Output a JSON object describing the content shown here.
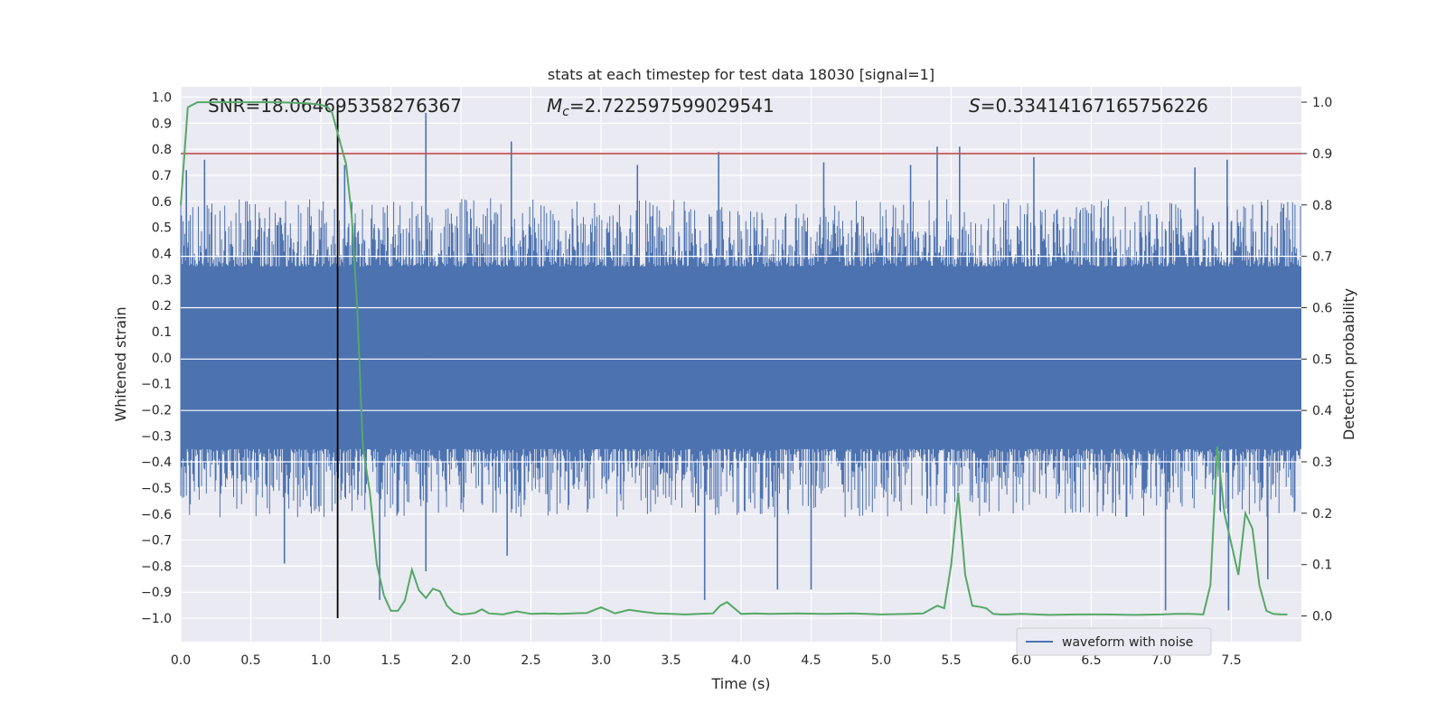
{
  "chart_data": {
    "type": "line",
    "title": "stats at each timestep for test data 18030 [signal=1]",
    "xlabel": "Time (s)",
    "ylabel": "Whitened strain",
    "ylabel_right": "Detection probability",
    "xlim": [
      0.0,
      8.0
    ],
    "ylim": [
      -1.09,
      1.04
    ],
    "ylim_right": [
      -0.05,
      1.03
    ],
    "x_ticks": [
      "0.0",
      "0.5",
      "1.0",
      "1.5",
      "2.0",
      "2.5",
      "3.0",
      "3.5",
      "4.0",
      "4.5",
      "5.0",
      "5.5",
      "6.0",
      "6.5",
      "7.0",
      "7.5"
    ],
    "x_tick_values": [
      0.0,
      0.5,
      1.0,
      1.5,
      2.0,
      2.5,
      3.0,
      3.5,
      4.0,
      4.5,
      5.0,
      5.5,
      6.0,
      6.5,
      7.0,
      7.5
    ],
    "y_ticks": [
      "1.0",
      "0.9",
      "0.8",
      "0.7",
      "0.6",
      "0.5",
      "0.4",
      "0.3",
      "0.2",
      "0.1",
      "0.0",
      "−0.1",
      "−0.2",
      "−0.3",
      "−0.4",
      "−0.5",
      "−0.6",
      "−0.7",
      "−0.8",
      "−0.9",
      "−1.0"
    ],
    "y_tick_values": [
      1.0,
      0.9,
      0.8,
      0.7,
      0.6,
      0.5,
      0.4,
      0.3,
      0.2,
      0.1,
      0.0,
      -0.1,
      -0.2,
      -0.3,
      -0.4,
      -0.5,
      -0.6,
      -0.7,
      -0.8,
      -0.9,
      -1.0
    ],
    "y_right_ticks": [
      "1.0",
      "0.9",
      "0.8",
      "0.7",
      "0.6",
      "0.5",
      "0.4",
      "0.3",
      "0.2",
      "0.1",
      "0.0"
    ],
    "y_right_tick_values": [
      1.0,
      0.9,
      0.8,
      0.7,
      0.6,
      0.5,
      0.4,
      0.3,
      0.2,
      0.1,
      0.0
    ],
    "annotations": {
      "snr": "SNR=18.064695358276367",
      "mc_symbol": "M",
      "mc_sub": "c",
      "mc_value": "=2.722597599029541",
      "s_symbol": "S",
      "s_value": "=0.33414167165756226"
    },
    "legend": {
      "label": "waveform with noise",
      "position": "lower-right"
    },
    "threshold_right": 0.9,
    "marker_time": 1.12,
    "series": [
      {
        "name": "waveform with noise",
        "axis": "left",
        "color": "#4c72b0",
        "noise_band": {
          "x_start": 0.0,
          "x_end": 8.0,
          "min": -0.6,
          "max": 0.6,
          "typical_abs": 0.35
        },
        "peaks": [
          {
            "x": 0.04,
            "y": 0.72
          },
          {
            "x": 0.17,
            "y": 0.76
          },
          {
            "x": 1.17,
            "y": 0.74
          },
          {
            "x": 1.75,
            "y": 0.94
          },
          {
            "x": 2.36,
            "y": 0.83
          },
          {
            "x": 3.26,
            "y": 0.74
          },
          {
            "x": 3.84,
            "y": 0.79
          },
          {
            "x": 4.59,
            "y": 0.75
          },
          {
            "x": 5.21,
            "y": 0.74
          },
          {
            "x": 5.4,
            "y": 0.81
          },
          {
            "x": 5.56,
            "y": 0.81
          },
          {
            "x": 6.09,
            "y": 0.77
          },
          {
            "x": 7.24,
            "y": 0.73
          },
          {
            "x": 7.47,
            "y": 0.76
          },
          {
            "x": 0.74,
            "y": -0.79
          },
          {
            "x": 1.42,
            "y": -0.93
          },
          {
            "x": 1.75,
            "y": -0.82
          },
          {
            "x": 2.33,
            "y": -0.76
          },
          {
            "x": 3.74,
            "y": -0.93
          },
          {
            "x": 4.26,
            "y": -0.89
          },
          {
            "x": 4.5,
            "y": -0.89
          },
          {
            "x": 7.03,
            "y": -0.97
          },
          {
            "x": 7.48,
            "y": -0.97
          },
          {
            "x": 7.76,
            "y": -0.85
          }
        ]
      },
      {
        "name": "detection probability",
        "axis": "right",
        "color": "#55a868",
        "x": [
          0.0,
          0.05,
          0.12,
          0.2,
          0.3,
          0.5,
          0.7,
          0.9,
          1.0,
          1.05,
          1.08,
          1.12,
          1.18,
          1.22,
          1.26,
          1.3,
          1.35,
          1.4,
          1.45,
          1.5,
          1.55,
          1.6,
          1.65,
          1.7,
          1.75,
          1.8,
          1.85,
          1.9,
          1.95,
          2.0,
          2.05,
          2.1,
          2.15,
          2.2,
          2.3,
          2.4,
          2.5,
          2.6,
          2.7,
          2.8,
          2.9,
          3.0,
          3.1,
          3.2,
          3.3,
          3.4,
          3.5,
          3.6,
          3.7,
          3.8,
          3.85,
          3.9,
          4.0,
          4.1,
          4.2,
          4.4,
          4.6,
          4.8,
          5.0,
          5.2,
          5.3,
          5.4,
          5.45,
          5.5,
          5.55,
          5.6,
          5.65,
          5.7,
          5.75,
          5.8,
          5.85,
          5.9,
          6.0,
          6.2,
          6.4,
          6.6,
          6.8,
          7.0,
          7.1,
          7.2,
          7.3,
          7.35,
          7.4,
          7.45,
          7.5,
          7.55,
          7.6,
          7.65,
          7.7,
          7.75,
          7.8,
          7.85,
          7.9
        ],
        "y": [
          0.8,
          0.99,
          1.0,
          1.0,
          1.0,
          1.0,
          1.0,
          0.998,
          0.995,
          0.99,
          0.98,
          0.94,
          0.88,
          0.78,
          0.6,
          0.33,
          0.24,
          0.1,
          0.04,
          0.01,
          0.01,
          0.03,
          0.09,
          0.05,
          0.035,
          0.053,
          0.048,
          0.02,
          0.007,
          0.003,
          0.004,
          0.006,
          0.013,
          0.005,
          0.003,
          0.009,
          0.004,
          0.005,
          0.004,
          0.005,
          0.006,
          0.017,
          0.005,
          0.012,
          0.008,
          0.005,
          0.004,
          0.003,
          0.004,
          0.005,
          0.02,
          0.027,
          0.004,
          0.005,
          0.004,
          0.005,
          0.004,
          0.005,
          0.003,
          0.004,
          0.005,
          0.02,
          0.015,
          0.1,
          0.24,
          0.08,
          0.02,
          0.018,
          0.015,
          0.004,
          0.003,
          0.003,
          0.004,
          0.002,
          0.003,
          0.003,
          0.002,
          0.003,
          0.004,
          0.004,
          0.003,
          0.06,
          0.33,
          0.2,
          0.14,
          0.08,
          0.2,
          0.17,
          0.06,
          0.01,
          0.004,
          0.003,
          0.003
        ]
      }
    ]
  }
}
